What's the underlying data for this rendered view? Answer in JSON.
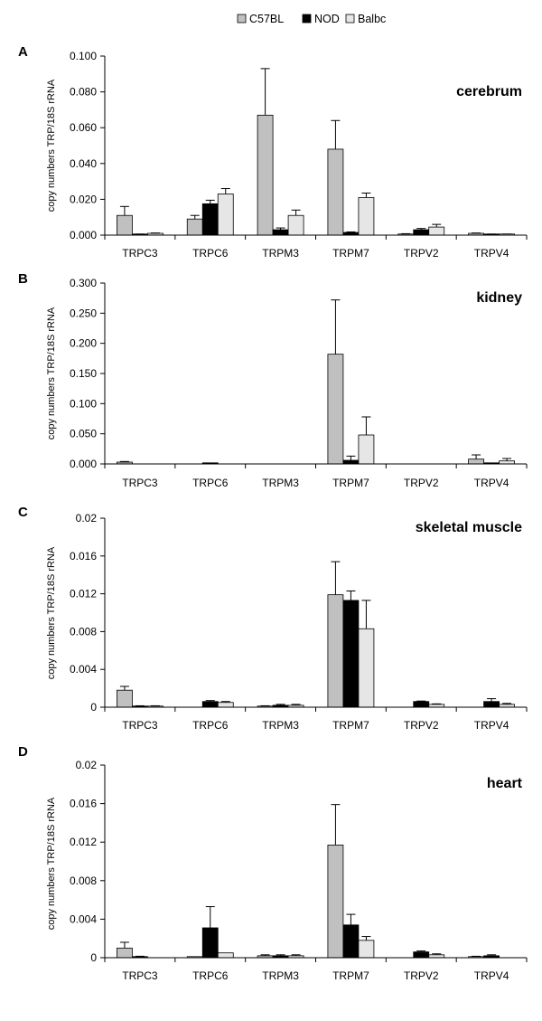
{
  "legend": [
    {
      "name": "C57BL",
      "color": "#c0c0c0"
    },
    {
      "name": "NOD",
      "color": "#000000"
    },
    {
      "name": "Balbc",
      "color": "#e6e6e6"
    }
  ],
  "chart_data": [
    {
      "type": "bar",
      "panel": "A",
      "title": "cerebrum",
      "ylabel": "copy numbers TRP/18S rRNA",
      "ylim": [
        0,
        0.1
      ],
      "yticks": [
        "0.000",
        "0.020",
        "0.040",
        "0.060",
        "0.080",
        "0.100"
      ],
      "categories": [
        "TRPC3",
        "TRPC6",
        "TRPM3",
        "TRPM7",
        "TRPV2",
        "TRPV4"
      ],
      "series": [
        {
          "name": "C57BL",
          "values": [
            0.011,
            0.009,
            0.067,
            0.048,
            0.0005,
            0.001
          ],
          "errors": [
            0.005,
            0.002,
            0.026,
            0.016,
            0.0003,
            0.0002
          ]
        },
        {
          "name": "NOD",
          "values": [
            0.0005,
            0.0175,
            0.003,
            0.0015,
            0.003,
            0.0005
          ],
          "errors": [
            0.0001,
            0.002,
            0.001,
            0.0003,
            0.0007,
            0.0001
          ]
        },
        {
          "name": "Balbc",
          "values": [
            0.001,
            0.023,
            0.011,
            0.021,
            0.0045,
            0.0005
          ],
          "errors": [
            0.0002,
            0.003,
            0.003,
            0.0025,
            0.0015,
            0.0001
          ]
        }
      ]
    },
    {
      "type": "bar",
      "panel": "B",
      "title": "kidney",
      "ylabel": "copy numbers TRP/18S rRNA",
      "ylim": [
        0,
        0.3
      ],
      "yticks": [
        "0.000",
        "0.050",
        "0.100",
        "0.150",
        "0.200",
        "0.250",
        "0.300"
      ],
      "categories": [
        "TRPC3",
        "TRPC6",
        "TRPM3",
        "TRPM7",
        "TRPV2",
        "TRPV4"
      ],
      "series": [
        {
          "name": "C57BL",
          "values": [
            0.003,
            0.0,
            0.0,
            0.182,
            0.0,
            0.008
          ],
          "errors": [
            0.001,
            0.0,
            0.0,
            0.09,
            0.0,
            0.007
          ]
        },
        {
          "name": "NOD",
          "values": [
            0.0,
            0.001,
            0.0,
            0.006,
            0.0,
            0.001
          ],
          "errors": [
            0.0,
            0.0003,
            0.0,
            0.007,
            0.0,
            0.0005
          ]
        },
        {
          "name": "Balbc",
          "values": [
            0.0,
            0.0,
            0.0,
            0.048,
            0.0,
            0.005
          ],
          "errors": [
            0.0,
            0.0,
            0.0,
            0.03,
            0.0,
            0.004
          ]
        }
      ]
    },
    {
      "type": "bar",
      "panel": "C",
      "title": "skeletal muscle",
      "ylabel": "copy numbers TRP/18S rRNA",
      "ylim": [
        0,
        0.02
      ],
      "yticks": [
        "0",
        "0.004",
        "0.008",
        "0.012",
        "0.016",
        "0.02"
      ],
      "categories": [
        "TRPC3",
        "TRPC6",
        "TRPM3",
        "TRPM7",
        "TRPV2",
        "TRPV4"
      ],
      "series": [
        {
          "name": "C57BL",
          "values": [
            0.0018,
            0.0,
            0.0001,
            0.0119,
            0.0,
            0.0
          ],
          "errors": [
            0.0004,
            0.0,
            5e-05,
            0.0035,
            0.0,
            0.0
          ]
        },
        {
          "name": "NOD",
          "values": [
            0.0001,
            0.0006,
            0.0002,
            0.0113,
            0.0006,
            0.0006
          ],
          "errors": [
            5e-05,
            0.0001,
            0.0001,
            0.001,
            5e-05,
            0.0003
          ]
        },
        {
          "name": "Balbc",
          "values": [
            0.0001,
            0.0005,
            0.0002,
            0.0083,
            0.0003,
            0.0003
          ],
          "errors": [
            5e-05,
            0.0001,
            0.0001,
            0.003,
            5e-05,
            0.0001
          ]
        }
      ]
    },
    {
      "type": "bar",
      "panel": "D",
      "title": "heart",
      "ylabel": "copy numbers TRP/18S rRNA",
      "ylim": [
        0,
        0.02
      ],
      "yticks": [
        "0",
        "0.004",
        "0.008",
        "0.012",
        "0.016",
        "0.02"
      ],
      "categories": [
        "TRPC3",
        "TRPC6",
        "TRPM3",
        "TRPM7",
        "TRPV2",
        "TRPV4"
      ],
      "series": [
        {
          "name": "C57BL",
          "values": [
            0.001,
            0.0001,
            0.0002,
            0.0117,
            0.0,
            0.0001
          ],
          "errors": [
            0.0006,
            0.0,
            0.0001,
            0.0042,
            0.0,
            5e-05
          ]
        },
        {
          "name": "NOD",
          "values": [
            0.0001,
            0.0031,
            0.0002,
            0.0034,
            0.0006,
            0.0002
          ],
          "errors": [
            5e-05,
            0.0022,
            0.0001,
            0.0011,
            0.0001,
            0.0001
          ]
        },
        {
          "name": "Balbc",
          "values": [
            0.0,
            0.0005,
            0.0002,
            0.0018,
            0.0003,
            0.0
          ],
          "errors": [
            0.0,
            0.0,
            0.0001,
            0.0004,
            0.0001,
            0.0
          ]
        }
      ]
    }
  ]
}
